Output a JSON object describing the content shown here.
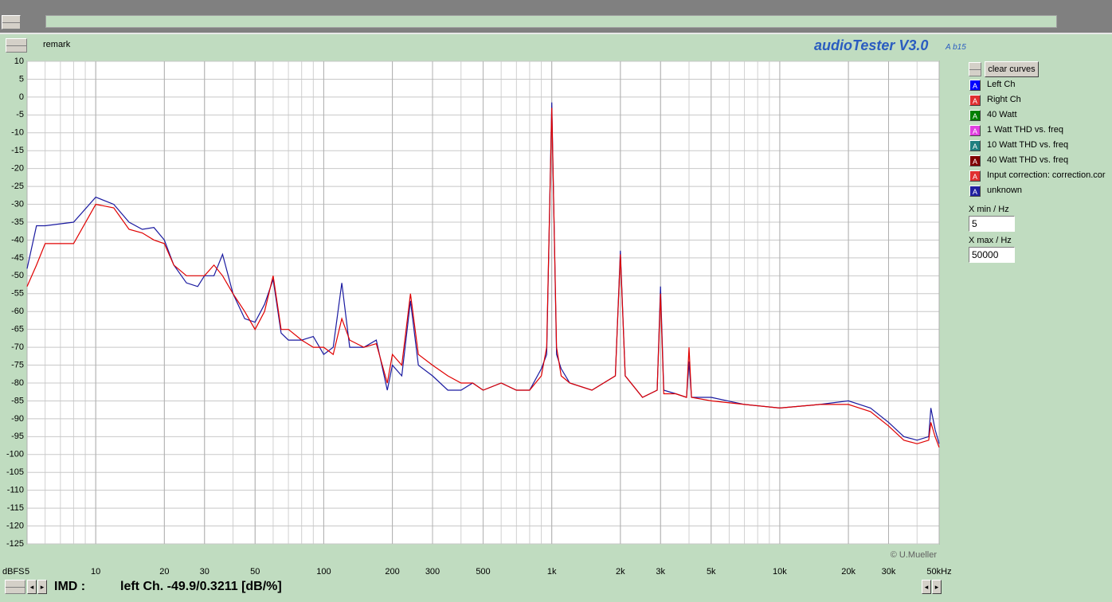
{
  "window": {
    "app_title": "audioTester V3.0",
    "app_version": "A b15",
    "remark_label": "remark",
    "clear_button": "clear curves",
    "legend_button_text": "A",
    "xmin_label": "X min / Hz",
    "xmin_value": "5",
    "xmax_label": "X max / Hz",
    "xmax_value": "50000",
    "copyright": "© U.Mueller",
    "status_label": "IMD :",
    "status_value": "left Ch. -49.9/0.3211 [dB/%]"
  },
  "chart_data": {
    "type": "line",
    "ylabel": "dBFS",
    "xscale": "log",
    "grid": true,
    "xlim": [
      5,
      50000
    ],
    "ylim": [
      -125,
      10
    ],
    "xticks": [
      5,
      10,
      20,
      30,
      50,
      100,
      200,
      300,
      500,
      {
        "value": 1000,
        "label": "1k"
      },
      {
        "value": 2000,
        "label": "2k"
      },
      {
        "value": 3000,
        "label": "3k"
      },
      {
        "value": 5000,
        "label": "5k"
      },
      {
        "value": 10000,
        "label": "10k"
      },
      {
        "value": 20000,
        "label": "20k"
      },
      {
        "value": 30000,
        "label": "30k"
      },
      {
        "value": 50000,
        "label": "50kHz"
      }
    ],
    "yticks": [
      10,
      5,
      0,
      -5,
      -10,
      -15,
      -20,
      -25,
      -30,
      -35,
      -40,
      -45,
      -50,
      -55,
      -60,
      -65,
      -70,
      -75,
      -80,
      -85,
      -90,
      -95,
      -100,
      -105,
      -110,
      -115,
      -120,
      -125
    ],
    "x": [
      5,
      5.5,
      6,
      8,
      10,
      12,
      14,
      16,
      18,
      20,
      22,
      25,
      28,
      30,
      33,
      36,
      40,
      45,
      50,
      55,
      60,
      65,
      70,
      80,
      90,
      100,
      110,
      120,
      130,
      150,
      170,
      190,
      200,
      220,
      240,
      260,
      300,
      350,
      400,
      450,
      500,
      600,
      700,
      800,
      900,
      950,
      1000,
      1050,
      1100,
      1200,
      1500,
      1900,
      2000,
      2100,
      2500,
      2900,
      3000,
      3100,
      3500,
      3900,
      4000,
      4100,
      5000,
      7000,
      10000,
      15000,
      20000,
      25000,
      30000,
      35000,
      40000,
      45000,
      46000,
      48000,
      50000
    ],
    "series": [
      {
        "name": "Left Ch",
        "color": "#1a1aa0",
        "button_color": "#0000ff",
        "values": [
          -48,
          -36,
          -36,
          -35,
          -28,
          -30,
          -35,
          -37,
          -36.5,
          -40,
          -47,
          -52,
          -53,
          -50,
          -50,
          -44,
          -55,
          -62,
          -63,
          -58,
          -51,
          -66,
          -68,
          -68,
          -67,
          -72,
          -70,
          -52,
          -70,
          -70,
          -68,
          -82,
          -75,
          -78,
          -57,
          -75,
          -78,
          -82,
          -82,
          -80,
          -82,
          -80,
          -82,
          -82,
          -76,
          -72,
          -1.5,
          -72,
          -76,
          -80,
          -82,
          -78,
          -43,
          -78,
          -84,
          -82,
          -53,
          -82,
          -83,
          -84,
          -74,
          -84,
          -84,
          -86,
          -87,
          -86,
          -85,
          -87,
          -91,
          -95,
          -96,
          -95,
          -87,
          -93,
          -97
        ]
      },
      {
        "name": "Right Ch",
        "color": "#e00000",
        "button_color": "#e03030",
        "values": [
          -53,
          -47,
          -41,
          -41,
          -30,
          -31,
          -37,
          -38,
          -40,
          -41,
          -47,
          -50,
          -50,
          -50,
          -47,
          -50,
          -55,
          -60,
          -65,
          -60,
          -50,
          -65,
          -65,
          -68,
          -70,
          -70,
          -72,
          -62,
          -68,
          -70,
          -69,
          -80,
          -72,
          -75,
          -55,
          -72,
          -75,
          -78,
          -80,
          -80,
          -82,
          -80,
          -82,
          -82,
          -78,
          -70,
          -3,
          -70,
          -78,
          -80,
          -82,
          -78,
          -44,
          -78,
          -84,
          -82,
          -55,
          -83,
          -83,
          -84,
          -70,
          -84,
          -85,
          -86,
          -87,
          -86,
          -86,
          -88,
          -92,
          -96,
          -97,
          -96,
          -91,
          -95,
          -98
        ]
      }
    ],
    "other_curves": [
      {
        "name": "40 Watt",
        "color": "#008000"
      },
      {
        "name": "1 Watt THD vs. freq",
        "color": "#e040e0"
      },
      {
        "name": "10 Watt THD vs. freq",
        "color": "#208080"
      },
      {
        "name": "40 Watt THD vs. freq",
        "color": "#800000"
      },
      {
        "name": "Input correction: correction.cor",
        "color": "#e03030"
      },
      {
        "name": "unknown",
        "color": "#2020a0"
      }
    ]
  }
}
